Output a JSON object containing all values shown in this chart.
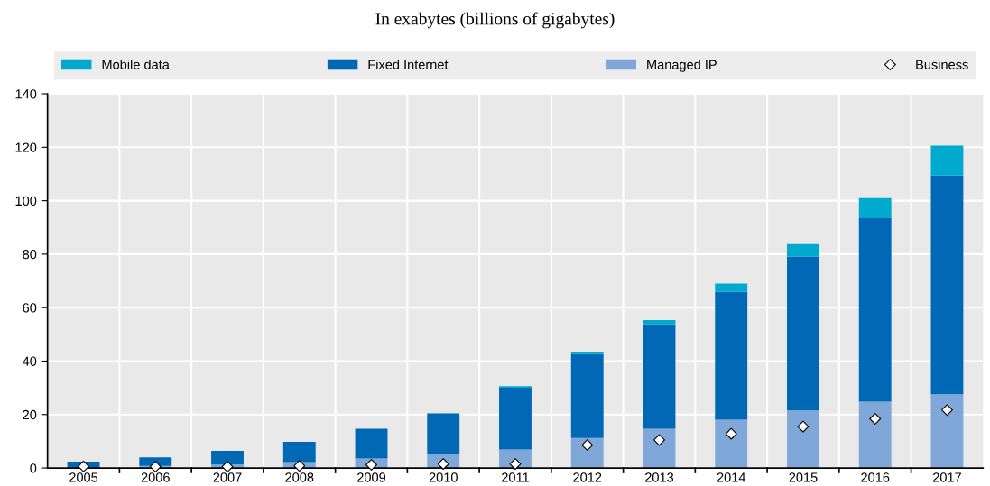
{
  "chart_data": {
    "type": "bar",
    "title": "In exabytes (billions of gigabytes)",
    "categories": [
      "2005",
      "2006",
      "2007",
      "2008",
      "2009",
      "2010",
      "2011",
      "2012",
      "2013",
      "2014",
      "2015",
      "2016",
      "2017"
    ],
    "stacked": true,
    "series": [
      {
        "name": "Managed IP",
        "color": "#7fa8d9",
        "values": [
          null,
          0.8,
          1.3,
          2.2,
          3.6,
          5.1,
          6.9,
          11.2,
          14.7,
          18.1,
          21.5,
          24.8,
          27.6
        ]
      },
      {
        "name": "Fixed Internet",
        "color": "#0068b5",
        "values": [
          2.4,
          3.2,
          5.1,
          7.6,
          11.1,
          15.3,
          23.1,
          31.4,
          39.0,
          47.8,
          57.6,
          68.7,
          81.8
        ]
      },
      {
        "name": "Mobile data",
        "color": "#00a9ce",
        "values": [
          0,
          0,
          0,
          0,
          0,
          0.1,
          0.6,
          0.9,
          1.6,
          3.1,
          4.7,
          7.5,
          11.2
        ]
      },
      {
        "name": "Business",
        "type": "scatter",
        "color": "#ffffff",
        "marker": "diamond",
        "values": [
          0.6,
          0.5,
          0.5,
          0.8,
          1.2,
          1.5,
          1.5,
          8.6,
          10.5,
          12.8,
          15.5,
          18.4,
          21.7
        ]
      }
    ],
    "ylim": [
      0,
      140
    ],
    "yticks": [
      0,
      20,
      40,
      60,
      80,
      100,
      120,
      140
    ],
    "grid": true,
    "legend": "top"
  }
}
